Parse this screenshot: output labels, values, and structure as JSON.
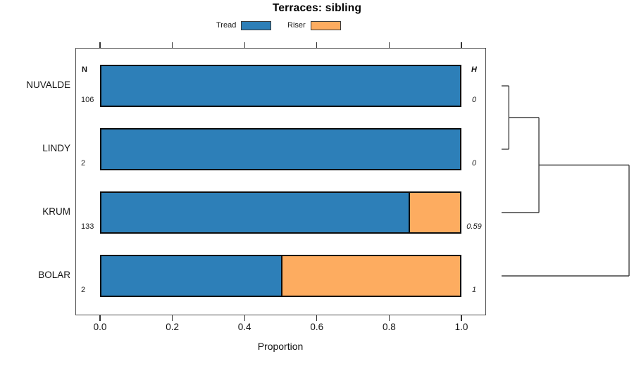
{
  "chart_data": {
    "type": "bar",
    "orientation": "horizontal",
    "stacked": true,
    "title": "Terraces: sibling",
    "xlabel": "Proportion",
    "xlim": [
      0,
      1
    ],
    "x_ticks": [
      0,
      0.2,
      0.4,
      0.6,
      0.8,
      1
    ],
    "x_tick_labels": [
      "0.0",
      "0.2",
      "0.4",
      "0.6",
      "0.8",
      "1.0"
    ],
    "categories": [
      "NUVALDE",
      "LINDY",
      "KRUM",
      "BOLAR"
    ],
    "series": [
      {
        "name": "Tread",
        "color": "#2D7FB8",
        "values": [
          1,
          1,
          0.857,
          0.5
        ]
      },
      {
        "name": "Riser",
        "color": "#FDAC60",
        "values": [
          0,
          0,
          0.143,
          0.5
        ]
      }
    ],
    "legend_position": "top",
    "grid": false,
    "annotations": {
      "n_header": "N",
      "h_header": "H",
      "n_values": [
        "106",
        "2",
        "133",
        "2"
      ],
      "h_values": [
        "0",
        "0",
        "0.59",
        "1"
      ]
    },
    "dendrogram": {
      "leaf_order": [
        "NUVALDE",
        "LINDY",
        "KRUM",
        "BOLAR"
      ],
      "merges": [
        {
          "a": 0,
          "b": 1,
          "pos": 0.057
        },
        {
          "a": 4,
          "b": 2,
          "pos": 0.293
        },
        {
          "a": 5,
          "b": 3,
          "pos": 1.0
        }
      ]
    }
  }
}
